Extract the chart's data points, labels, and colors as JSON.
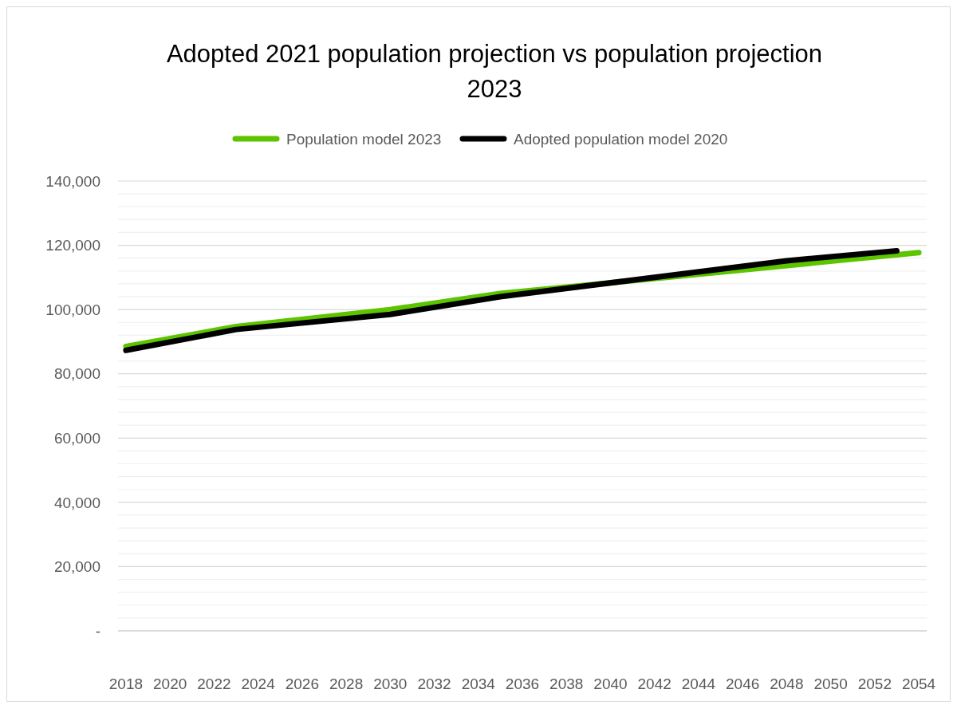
{
  "chart_data": {
    "type": "line",
    "title": "Adopted 2021 population projection vs population projection 2023",
    "xlim": [
      2017.64,
      2054.36
    ],
    "xticks": [
      2018,
      2020,
      2022,
      2024,
      2026,
      2028,
      2030,
      2032,
      2034,
      2036,
      2038,
      2040,
      2042,
      2044,
      2046,
      2048,
      2050,
      2052,
      2054
    ],
    "ylim": [
      0,
      140000
    ],
    "yticks": [
      {
        "value": 0,
        "label": "-"
      },
      {
        "value": 4000,
        "label": null
      },
      {
        "value": 8000,
        "label": null
      },
      {
        "value": 12000,
        "label": null
      },
      {
        "value": 16000,
        "label": null
      },
      {
        "value": 20000,
        "label": "20,000"
      },
      {
        "value": 24000,
        "label": null
      },
      {
        "value": 28000,
        "label": null
      },
      {
        "value": 32000,
        "label": null
      },
      {
        "value": 36000,
        "label": null
      },
      {
        "value": 40000,
        "label": "40,000"
      },
      {
        "value": 44000,
        "label": null
      },
      {
        "value": 48000,
        "label": null
      },
      {
        "value": 52000,
        "label": null
      },
      {
        "value": 56000,
        "label": null
      },
      {
        "value": 60000,
        "label": "60,000"
      },
      {
        "value": 64000,
        "label": null
      },
      {
        "value": 68000,
        "label": null
      },
      {
        "value": 72000,
        "label": null
      },
      {
        "value": 76000,
        "label": null
      },
      {
        "value": 80000,
        "label": "80,000"
      },
      {
        "value": 84000,
        "label": null
      },
      {
        "value": 88000,
        "label": null
      },
      {
        "value": 92000,
        "label": null
      },
      {
        "value": 96000,
        "label": null
      },
      {
        "value": 100000,
        "label": "100,000"
      },
      {
        "value": 104000,
        "label": null
      },
      {
        "value": 108000,
        "label": null
      },
      {
        "value": 112000,
        "label": null
      },
      {
        "value": 116000,
        "label": null
      },
      {
        "value": 120000,
        "label": "120,000"
      },
      {
        "value": 124000,
        "label": null
      },
      {
        "value": 128000,
        "label": null
      },
      {
        "value": 132000,
        "label": null
      },
      {
        "value": 136000,
        "label": null
      },
      {
        "value": 140000,
        "label": "140,000"
      }
    ],
    "grid": "y",
    "legend": "top",
    "marker": "none",
    "line_style": "solid",
    "series": [
      {
        "name": "Population model 2023",
        "color": "#5dc400",
        "x": [
          2018,
          2023,
          2030,
          2035,
          2054
        ],
        "values": [
          88500,
          94700,
          100000,
          105000,
          117700
        ]
      },
      {
        "name": "Adopted population model 2020",
        "color": "#000000",
        "x": [
          2018,
          2023,
          2030,
          2035,
          2048,
          2053
        ],
        "values": [
          87300,
          93800,
          98500,
          104000,
          115200,
          118300
        ]
      }
    ]
  }
}
